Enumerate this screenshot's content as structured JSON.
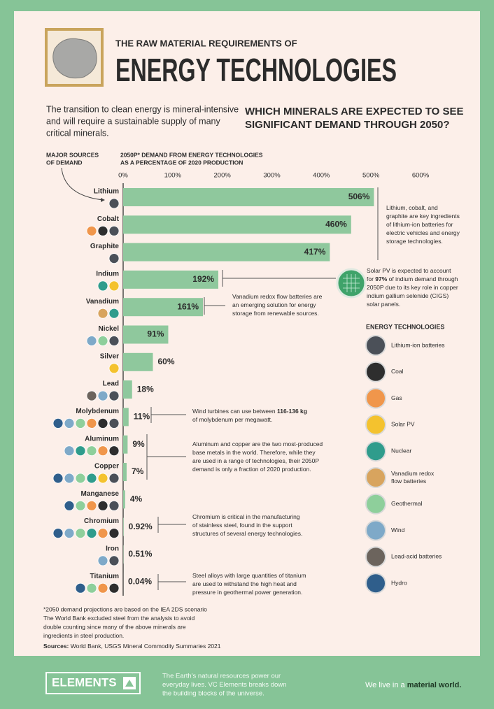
{
  "header": {
    "kicker": "THE RAW MATERIAL REQUIREMENTS OF",
    "title": "ENERGY TECHNOLOGIES"
  },
  "intro": [
    "The transition to clean energy is mineral-intensive",
    "and will require a sustainable supply of many",
    "critical minerals."
  ],
  "question": [
    "WHICH MINERALS ARE EXPECTED TO SEE",
    "SIGNIFICANT DEMAND THROUGH 2050?"
  ],
  "chart_data": {
    "type": "bar",
    "orientation": "horizontal",
    "category_axis_title": [
      "MAJOR SOURCES",
      "OF DEMAND"
    ],
    "value_axis_title": [
      "2050P* DEMAND FROM ENERGY TECHNOLOGIES",
      "AS A PERCENTAGE OF 2020 PRODUCTION"
    ],
    "categories": [
      "Lithium",
      "Cobalt",
      "Graphite",
      "Indium",
      "Vanadium",
      "Nickel",
      "Silver",
      "Lead",
      "Molybdenum",
      "Aluminum",
      "Copper",
      "Manganese",
      "Chromium",
      "Iron",
      "Titanium"
    ],
    "values": [
      506,
      460,
      417,
      192,
      161,
      91,
      60,
      18,
      11,
      9,
      7,
      4,
      0.92,
      0.51,
      0.04
    ],
    "value_labels": [
      "506%",
      "460%",
      "417%",
      "192%",
      "161%",
      "91%",
      "60%",
      "18%",
      "11%",
      "9%",
      "7%",
      "4%",
      "0.92%",
      "0.51%",
      "0.04%"
    ],
    "color": "#8fc89d",
    "xlim": [
      0,
      600
    ],
    "xticks": [
      {
        "value": 0,
        "label": "0%"
      },
      {
        "value": 100,
        "label": "100%"
      },
      {
        "value": 200,
        "label": "200%"
      },
      {
        "value": 300,
        "label": "300%"
      },
      {
        "value": 400,
        "label": "400%"
      },
      {
        "value": 500,
        "label": "500%"
      },
      {
        "value": 600,
        "label": "600%"
      }
    ],
    "grid": false
  },
  "annotations": [
    {
      "lines": [
        [
          "Lithium, cobalt, and"
        ],
        [
          "graphite are key ingredients"
        ],
        [
          "of lithium-ion batteries for"
        ],
        [
          "electric vehicles and energy"
        ],
        [
          "storage technologies."
        ]
      ]
    },
    {
      "lines": [
        [
          "Solar PV is expected to account"
        ],
        [
          "for ",
          {
            "text": "97%",
            "bold": true
          },
          " of indium demand through"
        ],
        [
          "2050P due to its key role in copper"
        ],
        [
          "indium gallium selenide (CIGS)"
        ],
        [
          "solar panels."
        ]
      ]
    },
    {
      "lines": [
        [
          "Vanadium redox flow batteries are"
        ],
        [
          "an emerging solution for energy"
        ],
        [
          "storage from renewable sources."
        ]
      ]
    },
    {
      "lines": [
        [
          "Wind turbines can use between ",
          {
            "text": "116-136 kg",
            "bold": true
          }
        ],
        [
          "of molybdenum per megawatt."
        ]
      ]
    },
    {
      "lines": [
        [
          "Aluminum and copper are the two most-produced"
        ],
        [
          "base metals in the world. Therefore, while they"
        ],
        [
          "are used in a range of technologies, their 2050P"
        ],
        [
          "demand is only a fraction of 2020 production."
        ]
      ]
    },
    {
      "lines": [
        [
          "Chromium is critical in the manufacturing"
        ],
        [
          "of stainless steel, found in the support"
        ],
        [
          "structures of several energy technologies."
        ]
      ]
    },
    {
      "lines": [
        [
          "Steel alloys with large quantities of titanium"
        ],
        [
          "are used to withstand the high heat and"
        ],
        [
          "pressure in geothermal power generation."
        ]
      ]
    }
  ],
  "legend": {
    "title": "ENERGY TECHNOLOGIES",
    "items": [
      {
        "name": [
          "Lithium-ion batteries"
        ],
        "color": "#4b5058"
      },
      {
        "name": [
          "Coal"
        ],
        "color": "#2e2e2e"
      },
      {
        "name": [
          "Gas"
        ],
        "color": "#f0964b"
      },
      {
        "name": [
          "Solar PV"
        ],
        "color": "#f4c22e"
      },
      {
        "name": [
          "Nuclear"
        ],
        "color": "#2f9c8c"
      },
      {
        "name": [
          "Vanadium redox",
          "flow batteries"
        ],
        "color": "#d8a45e"
      },
      {
        "name": [
          "Geothermal"
        ],
        "color": "#8ecf9b"
      },
      {
        "name": [
          "Wind"
        ],
        "color": "#7ea9c8"
      },
      {
        "name": [
          "Lead-acid batteries"
        ],
        "color": "#6c645d"
      },
      {
        "name": [
          "Hydro"
        ],
        "color": "#2f5e8b"
      }
    ]
  },
  "footnotes": [
    "*2050 demand projections are based on the IEA 2DS scenario",
    "The World Bank excluded steel from the analysis to avoid",
    "double counting since many of the above minerals are",
    "ingredients in steel production."
  ],
  "sources": {
    "label": "Sources:",
    "text": " World Bank, USGS Mineral Commodity Summaries 2021"
  },
  "footer": {
    "brand": "ELEMENTS",
    "blurb": [
      "The Earth's natural resources power our",
      "everyday lives. VC Elements breaks down",
      "the building blocks of the universe."
    ],
    "tagline": [
      [
        "We live in a "
      ],
      [
        {
          "text": "material world.",
          "bold": true
        }
      ]
    ]
  }
}
